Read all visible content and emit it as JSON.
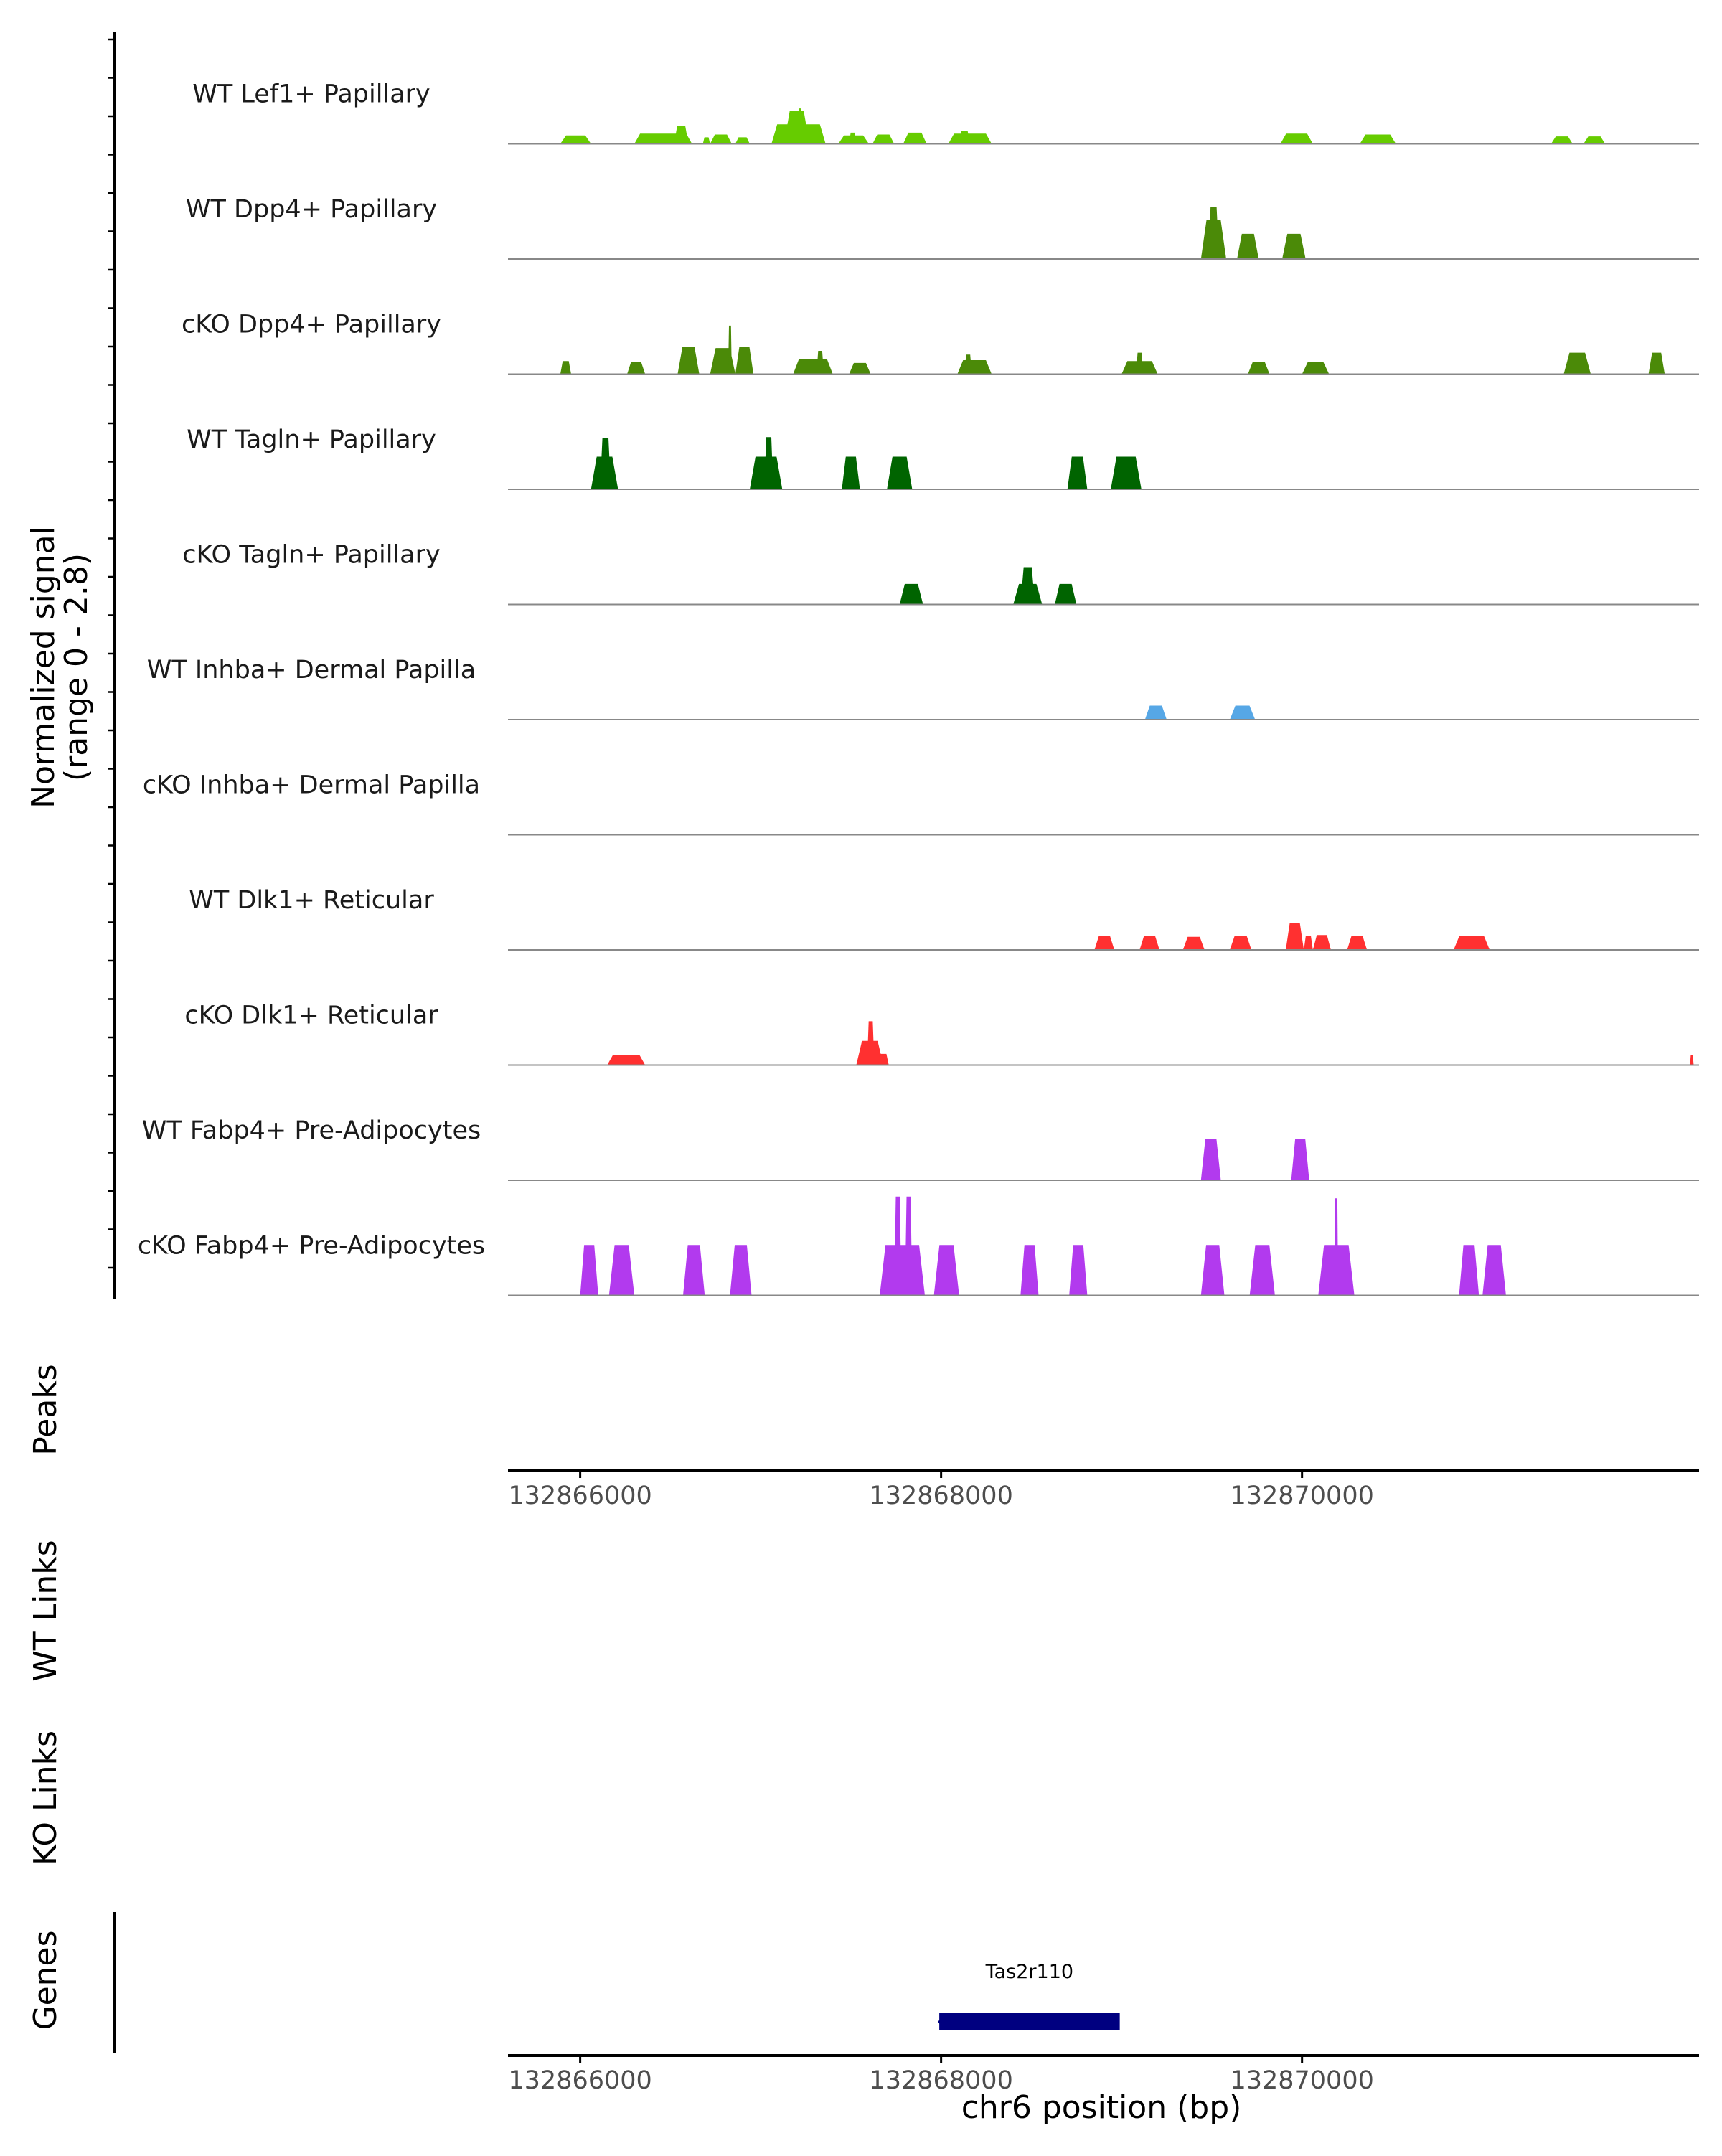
{
  "chart_data": {
    "type": "area",
    "title": "",
    "chrom": "chr6",
    "xlabel": "chr6 position (bp)",
    "xlim": [
      132865600,
      132872200
    ],
    "x_ticks": [
      132866000,
      132868000,
      132870000
    ],
    "x_tick_labels": [
      "132866000",
      "132868000",
      "132870000"
    ],
    "ylabel_line1": "Normalized signal",
    "ylabel_line2": "(range 0 - 2.8)",
    "ylim": [
      0,
      2.8
    ],
    "panels": {
      "peaks": "Peaks",
      "wt_links": "WT Links",
      "ko_links": "KO Links",
      "genes": "Genes"
    },
    "tracks": [
      {
        "name": "WT Lef1+ Papillary",
        "color": "#66CC00",
        "peaks": [
          [
            132865890,
            132866060,
            0.45
          ],
          [
            132866300,
            132866620,
            0.55
          ],
          [
            132866520,
            132866600,
            0.95
          ],
          [
            132866720,
            132866840,
            0.5
          ],
          [
            132866860,
            132866940,
            0.35
          ],
          [
            132866740,
            132866780,
            0.45
          ],
          [
            132866680,
            132866720,
            0.35
          ],
          [
            132867060,
            132867360,
            1.05
          ],
          [
            132867130,
            132867270,
            1.75
          ],
          [
            132867210,
            132867230,
            1.9
          ],
          [
            132867430,
            132867600,
            0.45
          ],
          [
            132867490,
            132867530,
            0.6
          ],
          [
            132867620,
            132867740,
            0.5
          ],
          [
            132867790,
            132867920,
            0.6
          ],
          [
            132868040,
            132868280,
            0.55
          ],
          [
            132868100,
            132868160,
            0.7
          ],
          [
            132869880,
            132870060,
            0.55
          ],
          [
            132870320,
            132870520,
            0.5
          ],
          [
            132871380,
            132871500,
            0.4
          ],
          [
            132871560,
            132871680,
            0.4
          ]
        ]
      },
      {
        "name": "WT Dpp4+ Papillary",
        "color": "#4B8A08",
        "peaks": [
          [
            132869440,
            132869580,
            2.1
          ],
          [
            132869480,
            132869540,
            2.8
          ],
          [
            132869640,
            132869760,
            1.35
          ],
          [
            132869890,
            132870020,
            1.35
          ]
        ]
      },
      {
        "name": "cKO Dpp4+ Papillary",
        "color": "#4B8A08",
        "peaks": [
          [
            132865890,
            132865950,
            0.7
          ],
          [
            132866260,
            132866360,
            0.65
          ],
          [
            132866540,
            132866660,
            1.45
          ],
          [
            132866720,
            132866860,
            1.4
          ],
          [
            132866820,
            132866840,
            2.6
          ],
          [
            132866860,
            132866960,
            1.45
          ],
          [
            132867180,
            132867400,
            0.8
          ],
          [
            132867310,
            132867350,
            1.25
          ],
          [
            132867490,
            132867610,
            0.6
          ],
          [
            132868090,
            132868280,
            0.75
          ],
          [
            132868130,
            132868170,
            1.05
          ],
          [
            132869000,
            132869200,
            0.7
          ],
          [
            132869080,
            132869120,
            1.15
          ],
          [
            132869700,
            132869820,
            0.65
          ],
          [
            132870000,
            132870150,
            0.65
          ],
          [
            132871450,
            132871600,
            1.15
          ],
          [
            132871920,
            132872010,
            1.15
          ]
        ]
      },
      {
        "name": "WT Tagln+ Papillary",
        "color": "#006400",
        "peaks": [
          [
            132866060,
            132866210,
            1.75
          ],
          [
            132866110,
            132866170,
            2.75
          ],
          [
            132866940,
            132867120,
            1.75
          ],
          [
            132867020,
            132867070,
            2.8
          ],
          [
            132867450,
            132867550,
            1.75
          ],
          [
            132867700,
            132867840,
            1.75
          ],
          [
            132868700,
            132868810,
            1.75
          ],
          [
            132868940,
            132869110,
            1.75
          ]
        ]
      },
      {
        "name": "cKO Tagln+ Papillary",
        "color": "#006400",
        "peaks": [
          [
            132867770,
            132867900,
            1.1
          ],
          [
            132868400,
            132868560,
            1.1
          ],
          [
            132868440,
            132868520,
            2.0
          ],
          [
            132868630,
            132868750,
            1.1
          ]
        ]
      },
      {
        "name": "WT Inhba+ Dermal Papilla",
        "color": "#56A7E6",
        "peaks": [
          [
            132869130,
            132869250,
            0.75
          ],
          [
            132869600,
            132869740,
            0.75
          ]
        ]
      },
      {
        "name": "cKO Inhba+ Dermal Papilla",
        "color": "#56A7E6",
        "peaks": []
      },
      {
        "name": "WT Dlk1+ Reticular",
        "color": "#FF3030",
        "peaks": [
          [
            132868850,
            132868960,
            0.75
          ],
          [
            132869100,
            132869210,
            0.75
          ],
          [
            132869340,
            132869460,
            0.7
          ],
          [
            132869600,
            132869720,
            0.75
          ],
          [
            132869910,
            132870010,
            1.45
          ],
          [
            132870010,
            132870060,
            0.75
          ],
          [
            132870060,
            132870160,
            0.8
          ],
          [
            132870250,
            132870360,
            0.75
          ],
          [
            132870840,
            132871040,
            0.75
          ]
        ]
      },
      {
        "name": "cKO Dlk1+ Reticular",
        "color": "#FF3030",
        "peaks": [
          [
            132866150,
            132866360,
            0.55
          ],
          [
            132867530,
            132867680,
            1.3
          ],
          [
            132867590,
            132867630,
            2.35
          ],
          [
            132867650,
            132867710,
            0.6
          ],
          [
            132872150,
            132872170,
            0.55
          ]
        ]
      },
      {
        "name": "WT Fabp4+ Pre-Adipocytes",
        "color": "#B23AEE",
        "peaks": [
          [
            132869440,
            132869550,
            2.2
          ],
          [
            132869940,
            132870040,
            2.2
          ]
        ]
      },
      {
        "name": "cKO Fabp4+ Pre-Adipocytes",
        "color": "#B23AEE",
        "peaks": [
          [
            132866000,
            132866100,
            2.7
          ],
          [
            132866160,
            132866300,
            2.7
          ],
          [
            132866570,
            132866690,
            2.7
          ],
          [
            132866830,
            132866950,
            2.7
          ],
          [
            132867660,
            132867910,
            2.7
          ],
          [
            132867740,
            132867780,
            5.3
          ],
          [
            132867800,
            132867840,
            5.3
          ],
          [
            132867960,
            132868100,
            2.7
          ],
          [
            132868440,
            132868540,
            2.7
          ],
          [
            132868710,
            132868810,
            2.7
          ],
          [
            132869440,
            132869570,
            2.7
          ],
          [
            132869710,
            132869850,
            2.7
          ],
          [
            132870090,
            132870290,
            2.7
          ],
          [
            132870180,
            132870200,
            5.2
          ],
          [
            132870870,
            132870980,
            2.7
          ],
          [
            132871000,
            132871130,
            2.7
          ]
        ]
      }
    ],
    "genes": [
      {
        "name": "Tas2r110",
        "start": 132867990,
        "end": 132868990,
        "strand": "-",
        "color": "#000080"
      }
    ]
  }
}
